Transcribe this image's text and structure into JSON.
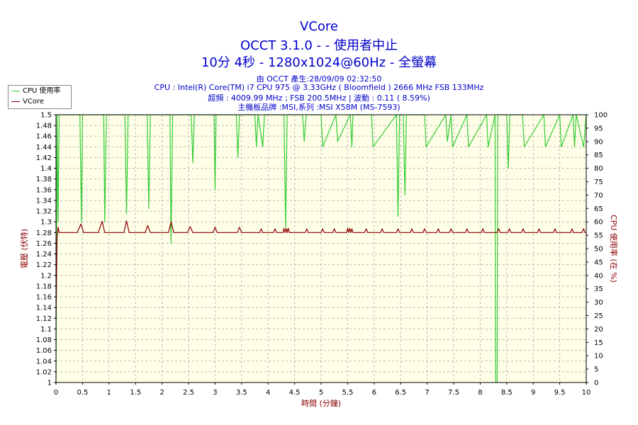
{
  "header": {
    "title": "VCore",
    "line2": "OCCT 3.1.0 -  - 使用者中止",
    "line3": "10分 4秒 - 1280x1024@60Hz - 全螢幕",
    "info1": "由 OCCT 產生:28/09/09 02:32:50",
    "info2": "CPU : Intel(R) Core(TM) i7 CPU 975 @ 3.33GHz ( Bloomfield ) 2666 MHz FSB 133MHz",
    "info3": "超頻 : 4009.99 MHz ; FSB 200.5MHz | 波動 : 0.11 ( 8.59%)",
    "info4": "主機板品牌 :MSI,系列 :MSI X58M (MS-7593)"
  },
  "legend": {
    "cpu": "CPU 使用率",
    "vcore": "VCore"
  },
  "colors": {
    "cpu": "#33cc33",
    "vcore": "#8b0000",
    "plot_bg": "#ffffe8",
    "grid": "#b8b8b8",
    "title": "#0000cc",
    "left_axis": "#8b0000"
  },
  "chart_data": {
    "type": "line",
    "title": "VCore",
    "xlabel": "時間 (分鐘)",
    "ylabel_left": "電壓 (伏特)",
    "ylabel_right": "CPU 使用率 (在 %)",
    "xlim": [
      0,
      10
    ],
    "ylim_left": [
      1,
      1.5
    ],
    "ylim_right": [
      0,
      100
    ],
    "grid": true,
    "legend_position": "top-left",
    "x_ticks": [
      "0",
      "0.5",
      "1",
      "1.5",
      "2",
      "2.5",
      "3",
      "3.5",
      "4",
      "4.5",
      "5",
      "5.5",
      "6",
      "6.5",
      "7",
      "7.5",
      "8",
      "8.5",
      "9",
      "9.5",
      "10"
    ],
    "y_left_ticks": [
      "1",
      "1.02",
      "1.04",
      "1.06",
      "1.08",
      "1.1",
      "1.12",
      "1.14",
      "1.16",
      "1.18",
      "1.2",
      "1.22",
      "1.24",
      "1.26",
      "1.28",
      "1.3",
      "1.32",
      "1.34",
      "1.36",
      "1.38",
      "1.4",
      "1.42",
      "1.44",
      "1.46",
      "1.48",
      "1.5"
    ],
    "y_right_ticks": [
      "0",
      "5",
      "10",
      "15",
      "20",
      "25",
      "30",
      "35",
      "40",
      "45",
      "50",
      "55",
      "60",
      "65",
      "70",
      "75",
      "80",
      "85",
      "90",
      "95",
      "100"
    ],
    "series": [
      {
        "name": "CPU 使用率",
        "axis": "right",
        "x": [
          0,
          0.02,
          0.04,
          0.06,
          0.45,
          0.48,
          0.5,
          0.53,
          0.9,
          0.92,
          0.95,
          1.3,
          1.33,
          1.36,
          1.72,
          1.75,
          1.78,
          2.15,
          2.17,
          2.2,
          2.22,
          2.55,
          2.58,
          2.61,
          2.98,
          3.0,
          3.02,
          3.4,
          3.43,
          3.46,
          3.75,
          3.78,
          3.81,
          3.9,
          3.93,
          4.3,
          4.33,
          4.36,
          4.65,
          4.68,
          4.72,
          5.0,
          5.03,
          5.28,
          5.31,
          5.55,
          5.58,
          5.6,
          5.95,
          5.98,
          6.42,
          6.45,
          6.48,
          6.55,
          6.58,
          6.61,
          6.95,
          6.98,
          7.35,
          7.38,
          7.45,
          7.48,
          7.75,
          7.78,
          8.12,
          8.15,
          8.28,
          8.29,
          8.32,
          8.33,
          8.5,
          8.53,
          8.56,
          8.8,
          8.83,
          9.2,
          9.23,
          9.5,
          9.53,
          9.75,
          9.78,
          9.81,
          9.95,
          10.0
        ],
        "y": [
          0,
          100,
          60,
          100,
          100,
          60,
          100,
          100,
          100,
          60,
          100,
          100,
          63,
          100,
          100,
          65,
          100,
          100,
          52,
          100,
          100,
          100,
          82,
          100,
          100,
          72,
          100,
          100,
          84,
          100,
          100,
          88,
          100,
          88,
          100,
          100,
          58,
          100,
          100,
          90,
          100,
          100,
          88,
          100,
          90,
          100,
          88,
          100,
          100,
          88,
          100,
          62,
          100,
          100,
          70,
          100,
          100,
          88,
          100,
          90,
          100,
          88,
          100,
          88,
          100,
          88,
          100,
          0,
          0,
          100,
          100,
          80,
          100,
          100,
          88,
          100,
          88,
          100,
          88,
          100,
          88,
          100,
          88,
          100
        ]
      },
      {
        "name": "VCore",
        "axis": "left",
        "x": [
          0,
          0.02,
          0.04,
          0.06,
          0.2,
          0.4,
          0.47,
          0.52,
          0.8,
          0.87,
          0.92,
          1.28,
          1.33,
          1.38,
          1.68,
          1.73,
          1.78,
          2.12,
          2.17,
          2.22,
          2.48,
          2.53,
          2.58,
          2.96,
          3.0,
          3.04,
          3.42,
          3.46,
          3.5,
          3.84,
          3.87,
          3.9,
          4.1,
          4.13,
          4.16,
          4.28,
          4.3,
          4.32,
          4.34,
          4.36,
          4.38,
          4.4,
          4.42,
          4.7,
          4.73,
          4.76,
          5.0,
          5.03,
          5.06,
          5.22,
          5.25,
          5.28,
          5.48,
          5.5,
          5.52,
          5.54,
          5.56,
          5.58,
          5.6,
          5.82,
          5.85,
          5.88,
          6.12,
          6.15,
          6.18,
          6.42,
          6.45,
          6.48,
          6.68,
          6.71,
          6.74,
          6.92,
          6.95,
          6.98,
          7.18,
          7.21,
          7.24,
          7.42,
          7.45,
          7.48,
          7.72,
          7.75,
          7.78,
          8.02,
          8.05,
          8.08,
          8.32,
          8.35,
          8.38,
          8.52,
          8.55,
          8.58,
          8.78,
          8.81,
          8.84,
          9.08,
          9.11,
          9.14,
          9.38,
          9.41,
          9.44,
          9.7,
          9.73,
          9.76,
          9.92,
          9.95,
          9.98,
          10.0
        ],
        "y": [
          1.12,
          1.27,
          1.29,
          1.28,
          1.28,
          1.28,
          1.296,
          1.28,
          1.28,
          1.301,
          1.28,
          1.28,
          1.302,
          1.28,
          1.28,
          1.293,
          1.28,
          1.28,
          1.3,
          1.28,
          1.28,
          1.291,
          1.28,
          1.28,
          1.29,
          1.28,
          1.28,
          1.29,
          1.28,
          1.28,
          1.287,
          1.28,
          1.28,
          1.287,
          1.28,
          1.28,
          1.288,
          1.28,
          1.288,
          1.28,
          1.288,
          1.28,
          1.28,
          1.28,
          1.287,
          1.28,
          1.28,
          1.287,
          1.28,
          1.28,
          1.287,
          1.28,
          1.28,
          1.288,
          1.28,
          1.288,
          1.28,
          1.287,
          1.28,
          1.28,
          1.287,
          1.28,
          1.28,
          1.287,
          1.28,
          1.28,
          1.287,
          1.28,
          1.28,
          1.287,
          1.28,
          1.28,
          1.287,
          1.28,
          1.28,
          1.287,
          1.28,
          1.28,
          1.287,
          1.28,
          1.28,
          1.287,
          1.28,
          1.28,
          1.287,
          1.28,
          1.28,
          1.287,
          1.28,
          1.28,
          1.287,
          1.28,
          1.28,
          1.287,
          1.28,
          1.28,
          1.287,
          1.28,
          1.28,
          1.287,
          1.28,
          1.28,
          1.287,
          1.28,
          1.28,
          1.287,
          1.28,
          1.28
        ]
      }
    ]
  }
}
